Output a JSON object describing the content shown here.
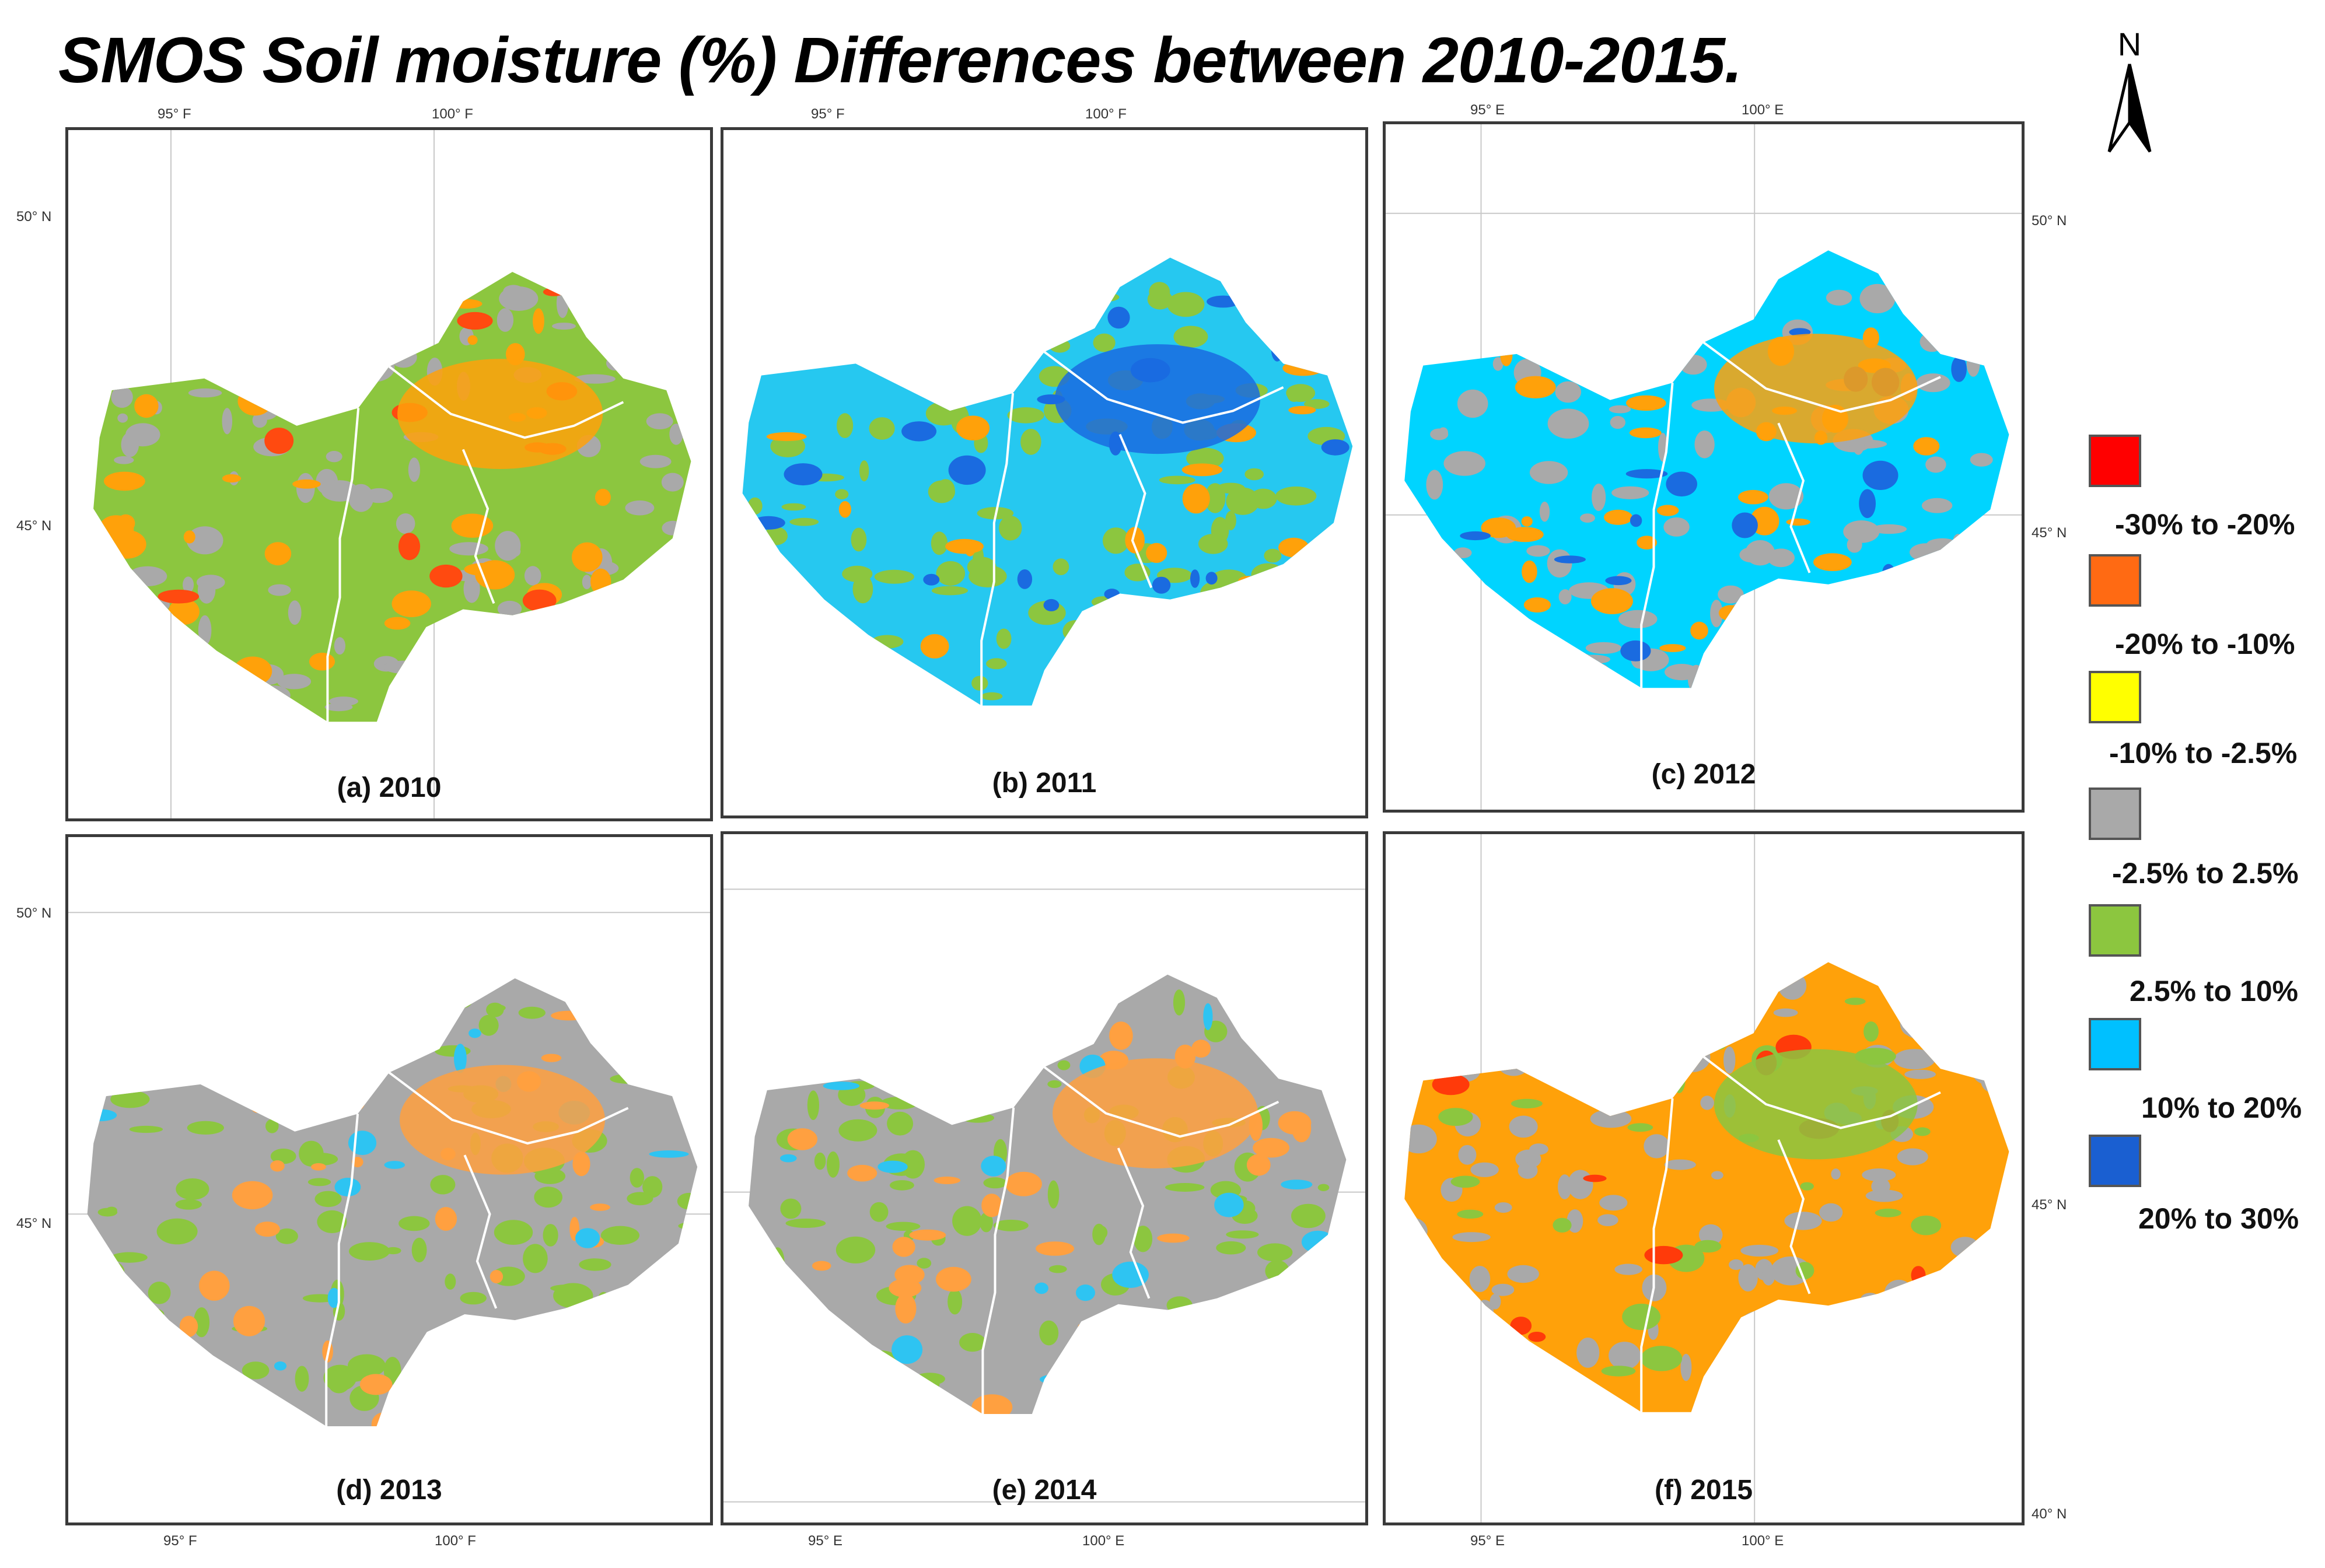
{
  "title": "SMOS Soil moisture (%) Differences between 2010-2015.",
  "north_label": "N",
  "ticks": {
    "lon_95_f": "95° F",
    "lon_100_f": "100° F",
    "lon_95_e": "95° E",
    "lon_100_e": "100° E",
    "lat_50": "50° N",
    "lat_45": "45° N",
    "lat_40": "40° N"
  },
  "legend": [
    {
      "label": "-30% to -20%",
      "color": "#ff0000"
    },
    {
      "label": "-20% to -10%",
      "color": "#ff6a13"
    },
    {
      "label": "-10% to -2.5%",
      "color": "#ffff00"
    },
    {
      "label": "-2.5% to 2.5%",
      "color": "#a9a9a9"
    },
    {
      "label": "2.5% to 10%",
      "color": "#8cc63f"
    },
    {
      "label": "10% to 20%",
      "color": "#00c0ff"
    },
    {
      "label": "20% to 30%",
      "color": "#1a5fd1"
    }
  ],
  "panels": [
    {
      "caption": "(a) 2010",
      "base_color": "#8cc63f",
      "secondary_color": "#a9a9a9",
      "accent_color": "#ffa10a",
      "hot_color": "#ff4a10"
    },
    {
      "caption": "(b) 2011",
      "base_color": "#26c8f0",
      "secondary_color": "#8cc63f",
      "accent_color": "#1a6be0",
      "hot_color": "#ffa10a"
    },
    {
      "caption": "(c) 2012",
      "base_color": "#00d4ff",
      "secondary_color": "#a9a9a9",
      "accent_color": "#ffa10a",
      "hot_color": "#1a6be0"
    },
    {
      "caption": "(d) 2013",
      "base_color": "#a9a9a9",
      "secondary_color": "#8cc63f",
      "accent_color": "#ffa040",
      "hot_color": "#2ec4f2"
    },
    {
      "caption": "(e) 2014",
      "base_color": "#a9a9a9",
      "secondary_color": "#8cc63f",
      "accent_color": "#ffa040",
      "hot_color": "#2ec4f2"
    },
    {
      "caption": "(f) 2015",
      "base_color": "#ffa10a",
      "secondary_color": "#a9a9a9",
      "accent_color": "#8cc63f",
      "hot_color": "#ff3a0a"
    }
  ]
}
